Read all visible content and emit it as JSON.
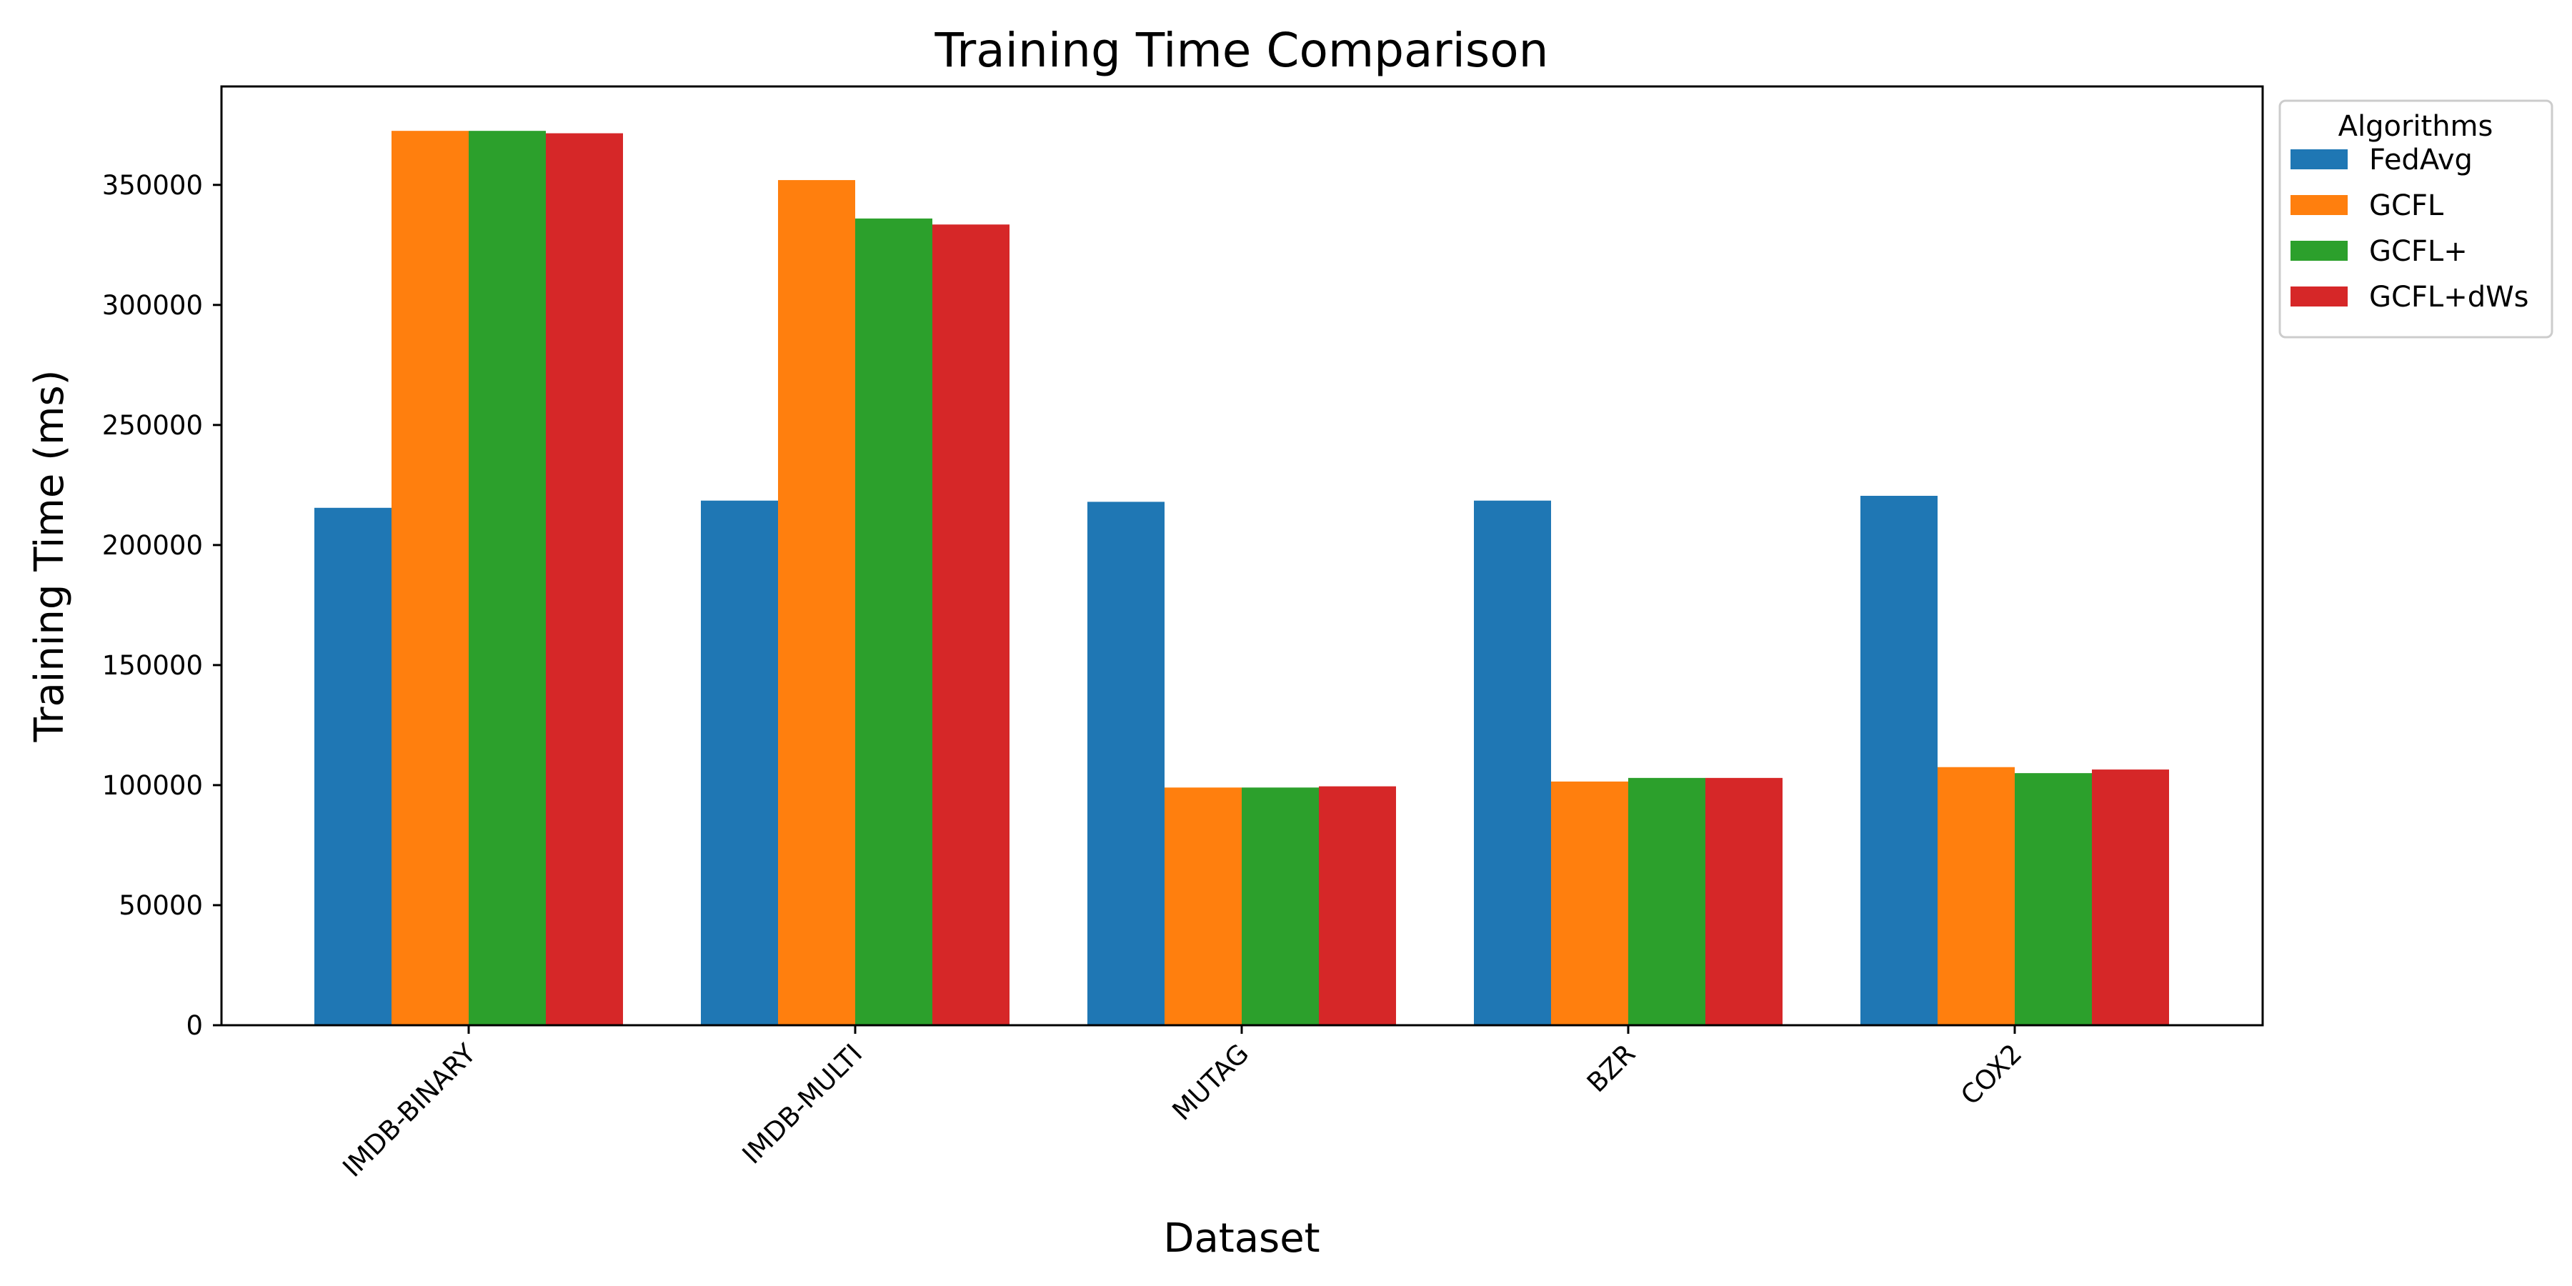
{
  "chart_data": {
    "type": "bar",
    "title": "Training Time Comparison",
    "xlabel": "Dataset",
    "ylabel": "Training Time (ms)",
    "categories": [
      "IMDB-BINARY",
      "IMDB-MULTI",
      "MUTAG",
      "BZR",
      "COX2"
    ],
    "series": [
      {
        "name": "FedAvg",
        "color": "#1f77b4",
        "values": [
          215500,
          218500,
          218000,
          218500,
          220500
        ]
      },
      {
        "name": "GCFL",
        "color": "#ff7f0e",
        "values": [
          372500,
          352000,
          99000,
          101500,
          107500
        ]
      },
      {
        "name": "GCFL+",
        "color": "#2ca02c",
        "values": [
          372500,
          336000,
          99000,
          103000,
          105000
        ]
      },
      {
        "name": "GCFL+dWs",
        "color": "#d62728",
        "values": [
          371500,
          333500,
          99500,
          103000,
          106500
        ]
      }
    ],
    "ylim": [
      0,
      391000
    ],
    "yticks": [
      0,
      50000,
      100000,
      150000,
      200000,
      250000,
      300000,
      350000
    ],
    "legend": {
      "title": "Algorithms",
      "placement": "outside-top-right"
    },
    "grid": false,
    "xtick_rotation": 45
  }
}
